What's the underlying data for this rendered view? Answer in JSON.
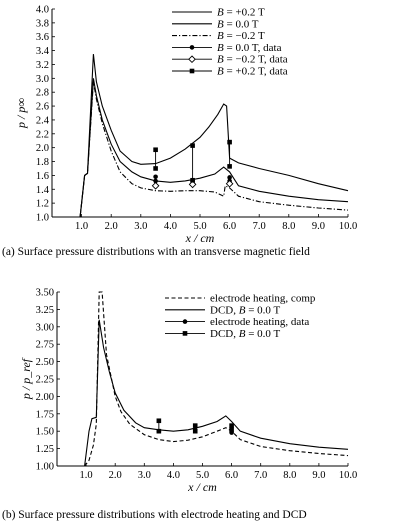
{
  "chart_data": [
    {
      "type": "line",
      "caption": "(a) Surface pressure distributions with an transverse magnetic field",
      "xlabel": "x / cm",
      "ylabel": "p / p∞",
      "xlim": [
        0.0,
        10.0
      ],
      "ylim": [
        1.0,
        4.0
      ],
      "xticks": [
        "1.0",
        "2.0",
        "3.0",
        "4.0",
        "5.0",
        "6.0",
        "7.0",
        "8.0",
        "9.0",
        "10.0"
      ],
      "yticks": [
        "1.0",
        "1.2",
        "1.4",
        "1.6",
        "1.8",
        "2.0",
        "2.2",
        "2.4",
        "2.6",
        "2.8",
        "3.0",
        "3.2",
        "3.4",
        "3.6",
        "3.8",
        "4.0"
      ],
      "grid": false,
      "legend_position": "top-right",
      "series": [
        {
          "name": "B = +0.2 T",
          "style": "solid",
          "color": "#000000",
          "x": [
            0.95,
            1.1,
            1.2,
            1.4,
            1.5,
            1.7,
            2.0,
            2.3,
            2.7,
            3.0,
            3.5,
            4.0,
            4.5,
            5.0,
            5.3,
            5.6,
            5.8,
            5.9,
            6.0,
            6.3,
            7.0,
            8.0,
            9.0,
            10.0
          ],
          "y": [
            1.0,
            1.6,
            1.63,
            3.35,
            2.95,
            2.6,
            2.25,
            1.95,
            1.8,
            1.76,
            1.77,
            1.85,
            1.98,
            2.15,
            2.3,
            2.48,
            2.63,
            2.6,
            1.85,
            1.78,
            1.7,
            1.6,
            1.48,
            1.38
          ]
        },
        {
          "name": "B = 0.0 T",
          "style": "solid",
          "color": "#000000",
          "x": [
            0.95,
            1.1,
            1.2,
            1.4,
            1.5,
            1.7,
            2.0,
            2.3,
            2.7,
            3.0,
            3.5,
            4.0,
            4.5,
            5.0,
            5.5,
            5.8,
            6.0,
            6.3,
            7.0,
            8.0,
            9.0,
            10.0
          ],
          "y": [
            1.0,
            1.6,
            1.63,
            3.0,
            2.75,
            2.4,
            2.05,
            1.8,
            1.65,
            1.58,
            1.52,
            1.5,
            1.52,
            1.56,
            1.62,
            1.72,
            1.65,
            1.45,
            1.37,
            1.3,
            1.25,
            1.22
          ]
        },
        {
          "name": "B = −0.2 T",
          "style": "dashdot",
          "color": "#000000",
          "x": [
            0.95,
            1.1,
            1.2,
            1.4,
            1.5,
            1.7,
            2.0,
            2.3,
            2.7,
            3.0,
            3.5,
            4.0,
            4.5,
            5.0,
            5.5,
            5.8,
            5.85,
            6.0,
            6.3,
            7.0,
            8.0,
            9.0,
            10.0
          ],
          "y": [
            1.0,
            1.6,
            1.63,
            2.95,
            2.7,
            2.35,
            1.95,
            1.65,
            1.48,
            1.42,
            1.38,
            1.37,
            1.38,
            1.38,
            1.36,
            1.3,
            1.45,
            1.42,
            1.3,
            1.22,
            1.17,
            1.13,
            1.1
          ]
        },
        {
          "name": "B = 0.0 T, data",
          "style": "markers",
          "marker": "circle",
          "color": "#000000",
          "x": [
            3.5,
            3.5,
            4.75,
            4.75,
            6.0,
            6.0
          ],
          "y": [
            1.58,
            1.52,
            1.52,
            1.48,
            1.57,
            1.52
          ],
          "error_ranges": []
        },
        {
          "name": "B = −0.2 T, data",
          "style": "markers",
          "marker": "diamond",
          "color": "#000000",
          "x": [
            3.5,
            4.75,
            6.0
          ],
          "y": [
            1.45,
            1.47,
            1.48
          ]
        },
        {
          "name": "B = +0.2 T, data",
          "style": "markers",
          "marker": "square",
          "color": "#000000",
          "x": [
            3.5,
            3.5,
            4.75,
            4.75,
            6.0,
            6.0
          ],
          "y": [
            1.97,
            1.7,
            2.03,
            1.53,
            2.08,
            1.73
          ]
        }
      ]
    },
    {
      "type": "line",
      "caption": "(b) Surface pressure distributions with electrode heating and DCD",
      "xlabel": "x / cm",
      "ylabel": "p / p_ref",
      "xlim": [
        0.0,
        10.0
      ],
      "ylim": [
        1.0,
        3.5
      ],
      "xticks": [
        "1.0",
        "2.0",
        "3.0",
        "4.0",
        "5.0",
        "6.0",
        "7.0",
        "8.0",
        "9.0",
        "10.0"
      ],
      "yticks": [
        "1.00",
        "1.25",
        "1.50",
        "1.75",
        "2.00",
        "2.25",
        "2.50",
        "2.75",
        "3.00",
        "3.25",
        "3.50"
      ],
      "grid": false,
      "legend_position": "top-right",
      "series": [
        {
          "name": "electrode heating, comp",
          "style": "dashed",
          "color": "#000000",
          "x": [
            0.95,
            1.1,
            1.25,
            1.35,
            1.45,
            1.55,
            1.7,
            2.0,
            2.2,
            2.5,
            3.0,
            3.5,
            4.0,
            4.5,
            5.0,
            5.5,
            5.8,
            6.0,
            6.3,
            7.0,
            8.0,
            9.0,
            10.0
          ],
          "y": [
            1.0,
            1.08,
            1.3,
            1.6,
            3.5,
            3.5,
            2.6,
            2.0,
            1.78,
            1.6,
            1.45,
            1.38,
            1.35,
            1.37,
            1.42,
            1.5,
            1.55,
            1.5,
            1.38,
            1.28,
            1.22,
            1.18,
            1.15
          ]
        },
        {
          "name": "DCD, B = 0.0 T",
          "style": "solid",
          "color": "#000000",
          "x": [
            0.95,
            1.1,
            1.2,
            1.35,
            1.45,
            1.6,
            1.8,
            2.0,
            2.3,
            2.7,
            3.0,
            3.5,
            4.0,
            4.5,
            5.0,
            5.5,
            5.8,
            6.0,
            6.3,
            7.0,
            8.0,
            9.0,
            10.0
          ],
          "y": [
            1.0,
            1.5,
            1.68,
            1.7,
            3.1,
            2.7,
            2.35,
            2.05,
            1.8,
            1.62,
            1.55,
            1.52,
            1.5,
            1.52,
            1.57,
            1.64,
            1.72,
            1.64,
            1.5,
            1.4,
            1.32,
            1.27,
            1.24
          ]
        },
        {
          "name": "electrode heating, data",
          "style": "markers",
          "marker": "circle",
          "color": "#000000",
          "x": [
            3.5,
            4.75,
            6.0
          ],
          "y": [
            1.5,
            1.52,
            1.48
          ]
        },
        {
          "name": "DCD, B = 0.0 T",
          "style": "markers",
          "marker": "square",
          "color": "#000000",
          "x": [
            3.5,
            3.5,
            4.75,
            4.75,
            6.0,
            6.0
          ],
          "y": [
            1.65,
            1.5,
            1.58,
            1.5,
            1.58,
            1.52
          ]
        }
      ]
    }
  ],
  "legend_labels": {
    "top": [
      [
        "B",
        " = +0.2 T"
      ],
      [
        "B",
        " = 0.0 T"
      ],
      [
        "B",
        " = −0.2 T"
      ],
      [
        "B",
        " = 0.0 T, data"
      ],
      [
        "B",
        " = −0.2 T, data"
      ],
      [
        "B",
        " = +0.2 T, data"
      ]
    ],
    "bottom": [
      [
        "",
        "electrode heating, comp"
      ],
      [
        "DCD, ",
        "B",
        " = 0.0 T"
      ],
      [
        "",
        "electrode heating, data"
      ],
      [
        "DCD, ",
        "B",
        " = 0.0 T"
      ]
    ]
  }
}
